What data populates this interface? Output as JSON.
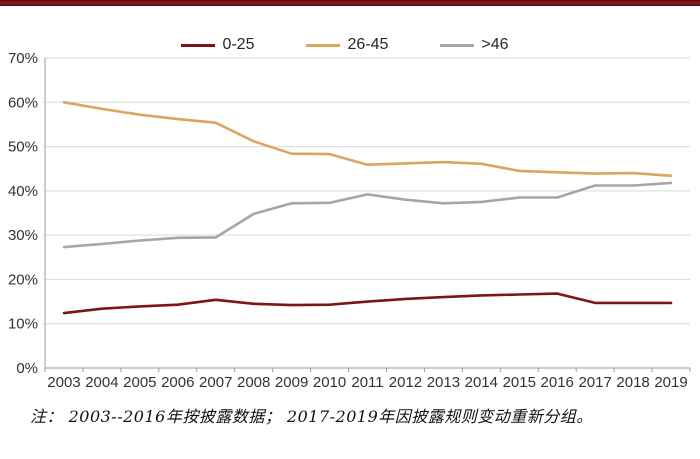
{
  "accent_bar": {
    "color": "#7E1416"
  },
  "legend": {
    "items": [
      {
        "label": "0-25",
        "color": "#7E1416"
      },
      {
        "label": "26-45",
        "color": "#D9A55F"
      },
      {
        "label": ">46",
        "color": "#A6A6A6"
      }
    ]
  },
  "footnote": "注： 2003--2016年按披露数据； 2017-2019年因披露规则变动重新分组。",
  "chart_data": {
    "type": "line",
    "title": "",
    "xlabel": "",
    "ylabel": "",
    "x": [
      "2003",
      "2004",
      "2005",
      "2006",
      "2007",
      "2008",
      "2009",
      "2010",
      "2011",
      "2012",
      "2013",
      "2014",
      "2015",
      "2016",
      "2017",
      "2018",
      "2019"
    ],
    "series": [
      {
        "name": "0-25",
        "color": "#7E1416",
        "values": [
          12.4,
          13.4,
          13.9,
          14.3,
          15.4,
          14.5,
          14.2,
          14.3,
          15.0,
          15.6,
          16.0,
          16.4,
          16.6,
          16.8,
          14.7,
          14.7,
          14.7
        ]
      },
      {
        "name": "26-45",
        "color": "#D9A55F",
        "values": [
          60.0,
          58.5,
          57.2,
          56.2,
          55.4,
          51.2,
          48.4,
          48.3,
          45.9,
          46.2,
          46.5,
          46.1,
          44.5,
          44.2,
          43.9,
          44.0,
          43.4
        ]
      },
      {
        "name": ">46",
        "color": "#A6A6A6",
        "values": [
          27.3,
          28.0,
          28.8,
          29.4,
          29.5,
          34.8,
          37.2,
          37.3,
          39.2,
          38.0,
          37.2,
          37.5,
          38.5,
          38.5,
          41.2,
          41.2,
          41.8
        ]
      }
    ],
    "ylim": [
      0,
      70
    ],
    "yticks": [
      0,
      10,
      20,
      30,
      40,
      50,
      60,
      70
    ],
    "ytick_labels": [
      "0%",
      "10%",
      "20%",
      "30%",
      "40%",
      "50%",
      "60%",
      "70%"
    ],
    "grid": true,
    "legend_position": "top-center",
    "colors": {
      "gridline": "#D9D9D9",
      "axis": "#9A9A9A",
      "tick_text": "#333333"
    }
  }
}
